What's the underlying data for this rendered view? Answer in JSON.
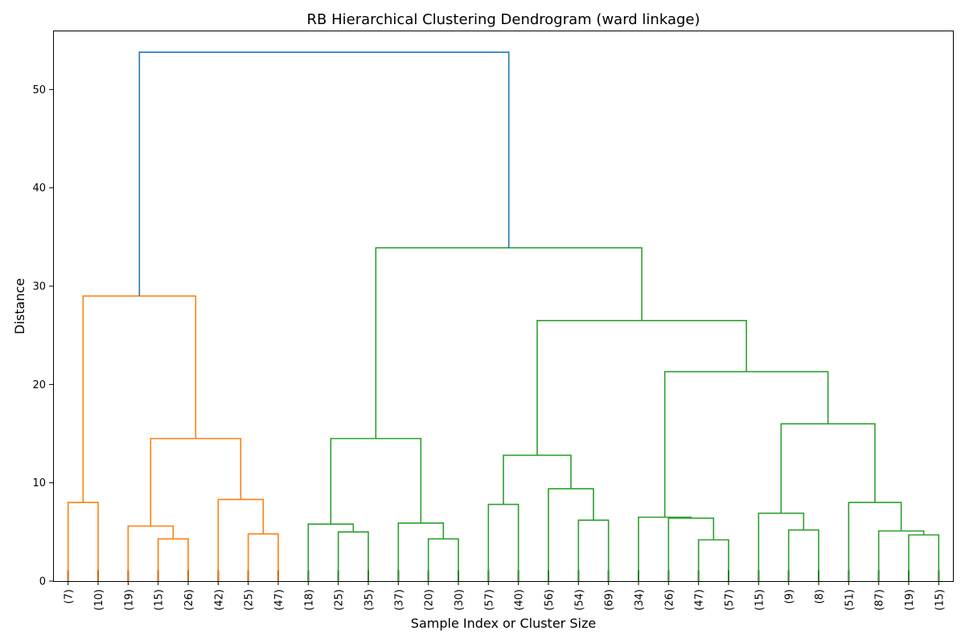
{
  "chart_data": {
    "type": "dendrogram",
    "title": "RB Hierarchical Clustering Dendrogram (ward linkage)",
    "xlabel": "Sample Index or Cluster Size",
    "ylabel": "Distance",
    "ylim": [
      0,
      56
    ],
    "yticks": [
      0,
      10,
      20,
      30,
      40,
      50
    ],
    "grid": false,
    "colors": {
      "root": "#1f77b4",
      "cluster1": "#ff7f0e",
      "cluster2": "#2ca02c",
      "leaf": "#000000"
    },
    "leaves": [
      "(7)",
      "(10)",
      "(19)",
      "(15)",
      "(26)",
      "(42)",
      "(25)",
      "(47)",
      "(18)",
      "(25)",
      "(35)",
      "(37)",
      "(20)",
      "(30)",
      "(57)",
      "(40)",
      "(56)",
      "(54)",
      "(69)",
      "(34)",
      "(26)",
      "(47)",
      "(57)",
      "(15)",
      "(9)",
      "(8)",
      "(51)",
      "(87)",
      "(19)",
      "(15)"
    ],
    "merges": [
      {
        "children": [
          "L0",
          "L1"
        ],
        "height": 8.0,
        "color": "cluster1"
      },
      {
        "children": [
          "L3",
          "L4"
        ],
        "height": 4.3,
        "color": "cluster1"
      },
      {
        "children": [
          "L2",
          "M1"
        ],
        "height": 5.6,
        "color": "cluster1"
      },
      {
        "children": [
          "L6",
          "L7"
        ],
        "height": 4.8,
        "color": "cluster1"
      },
      {
        "children": [
          "L5",
          "M3"
        ],
        "height": 8.3,
        "color": "cluster1"
      },
      {
        "children": [
          "M2",
          "M4"
        ],
        "height": 14.5,
        "color": "cluster1"
      },
      {
        "children": [
          "M0",
          "M5"
        ],
        "height": 29.0,
        "color": "cluster1"
      },
      {
        "children": [
          "L9",
          "L10"
        ],
        "height": 5.0,
        "color": "cluster2"
      },
      {
        "children": [
          "L8",
          "M7"
        ],
        "height": 5.8,
        "color": "cluster2"
      },
      {
        "children": [
          "L12",
          "L13"
        ],
        "height": 4.3,
        "color": "cluster2"
      },
      {
        "children": [
          "L11",
          "M9"
        ],
        "height": 5.9,
        "color": "cluster2"
      },
      {
        "children": [
          "M8",
          "M10"
        ],
        "height": 14.5,
        "color": "cluster2"
      },
      {
        "children": [
          "L14",
          "L15"
        ],
        "height": 7.8,
        "color": "cluster2"
      },
      {
        "children": [
          "L17",
          "L18"
        ],
        "height": 6.2,
        "color": "cluster2"
      },
      {
        "children": [
          "L16",
          "M13"
        ],
        "height": 9.4,
        "color": "cluster2"
      },
      {
        "children": [
          "M12",
          "M14"
        ],
        "height": 12.8,
        "color": "cluster2"
      },
      {
        "children": [
          "L21",
          "L22"
        ],
        "height": 4.2,
        "color": "cluster2"
      },
      {
        "children": [
          "L20",
          "M16"
        ],
        "height": 6.4,
        "color": "cluster2"
      },
      {
        "children": [
          "L19",
          "M17"
        ],
        "height": 6.5,
        "color": "cluster2"
      },
      {
        "children": [
          "L24",
          "L25"
        ],
        "height": 5.2,
        "color": "cluster2"
      },
      {
        "children": [
          "L23",
          "M19"
        ],
        "height": 6.9,
        "color": "cluster2"
      },
      {
        "children": [
          "L28",
          "L29"
        ],
        "height": 4.7,
        "color": "cluster2"
      },
      {
        "children": [
          "L27",
          "M21"
        ],
        "height": 5.1,
        "color": "cluster2"
      },
      {
        "children": [
          "L26",
          "M22"
        ],
        "height": 8.0,
        "color": "cluster2"
      },
      {
        "children": [
          "M20",
          "M23"
        ],
        "height": 16.0,
        "color": "cluster2"
      },
      {
        "children": [
          "M18",
          "M24"
        ],
        "height": 21.3,
        "color": "cluster2"
      },
      {
        "children": [
          "M15",
          "M25"
        ],
        "height": 26.5,
        "color": "cluster2"
      },
      {
        "children": [
          "M11",
          "M26"
        ],
        "height": 33.9,
        "color": "cluster2"
      },
      {
        "children": [
          "M6",
          "M27"
        ],
        "height": 53.8,
        "color": "root"
      }
    ]
  }
}
